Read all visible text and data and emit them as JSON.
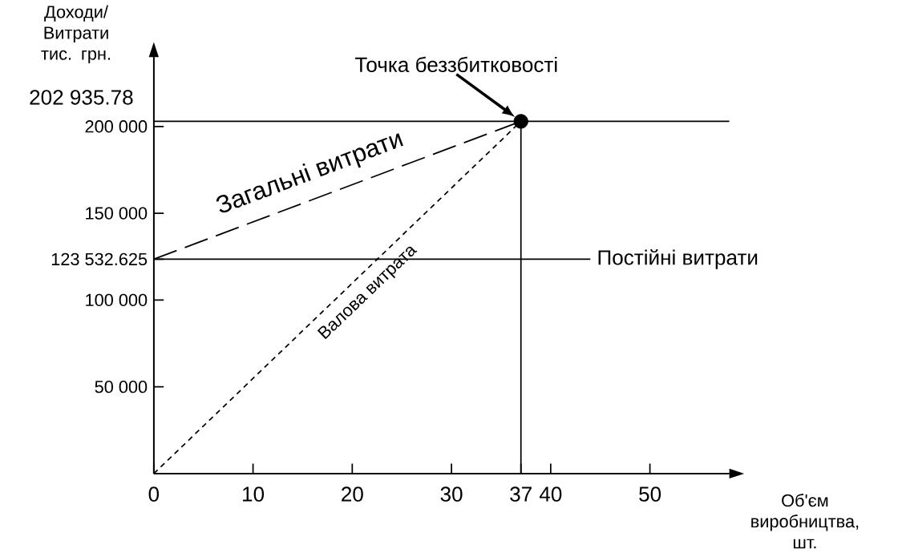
{
  "chart_data": {
    "type": "line",
    "xlabel": "Об'єм виробництва, шт.",
    "ylabel": "Доходи/ Витрати тис. грн.",
    "annotations": [
      {
        "text": "Точка беззбитковості",
        "x": 37,
        "y": 202935.78
      }
    ],
    "xlim": [
      0,
      58
    ],
    "ylim": [
      0,
      240000
    ],
    "xticks": [
      0,
      10,
      20,
      30,
      37,
      40,
      50
    ],
    "yticks": [
      {
        "value": 50000,
        "label": "50 000"
      },
      {
        "value": 100000,
        "label": "100 000"
      },
      {
        "value": 123532.625,
        "label": "123 532.625"
      },
      {
        "value": 150000,
        "label": "150 000"
      },
      {
        "value": 200000,
        "label": "200 000"
      }
    ],
    "ref_lines": [
      {
        "axis": "y",
        "value": 202935.78,
        "label": "202 935.78",
        "color": "#000000"
      },
      {
        "axis": "x",
        "value": 37,
        "color": "#000000"
      }
    ],
    "grid": false,
    "series": [
      {
        "name": "Загальні витрати",
        "color": "#000000",
        "x": [
          0,
          37
        ],
        "values": [
          123532.625,
          202935.78
        ],
        "line_style": "dashed"
      },
      {
        "name": "Валова витрата",
        "color": "#000000",
        "x": [
          0,
          37
        ],
        "values": [
          0,
          202935.78
        ],
        "line_style": "dotted"
      },
      {
        "name": "Постійні витрати",
        "color": "#000000",
        "x": [
          0,
          44
        ],
        "values": [
          123532.625,
          123532.625
        ],
        "line_style": "solid"
      },
      {
        "type": "scatter",
        "color": "#000000",
        "x": [
          37
        ],
        "values": [
          202935.78
        ],
        "marker": "circle"
      }
    ]
  }
}
